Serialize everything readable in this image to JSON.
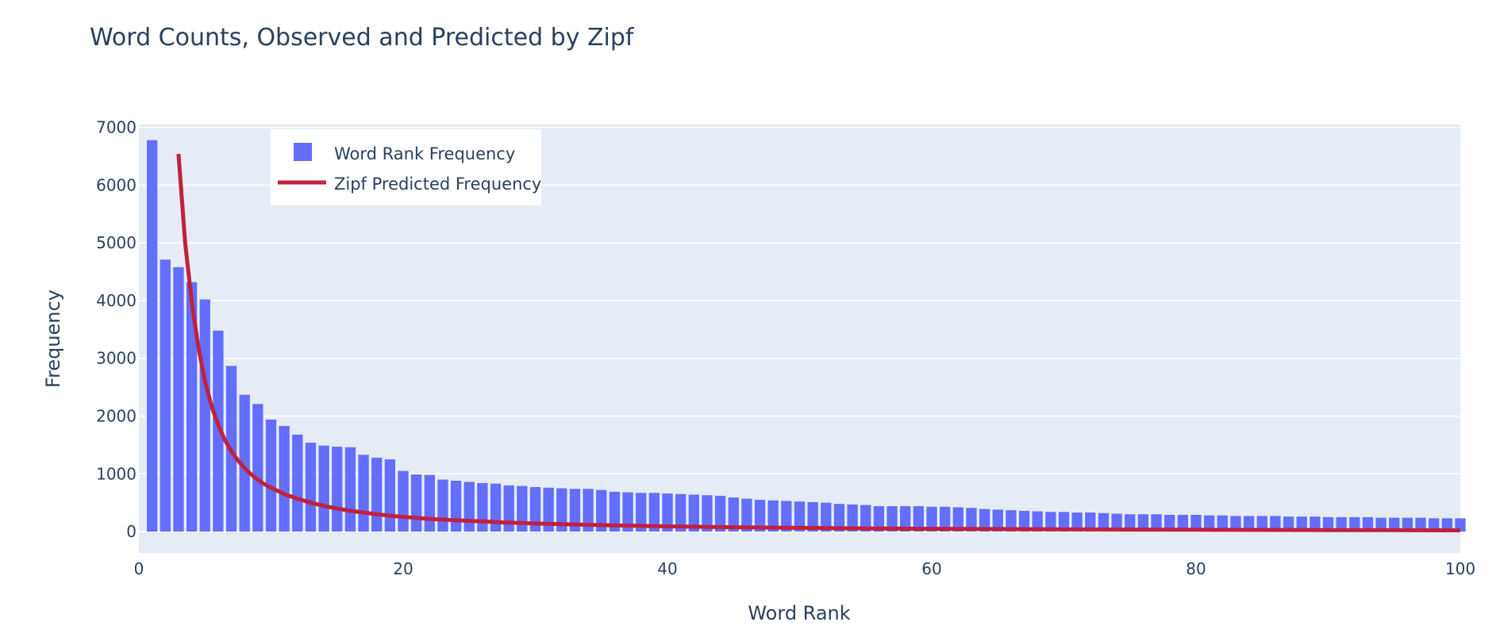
{
  "chart_data": {
    "type": "bar",
    "title": "Word Counts, Observed and Predicted by Zipf",
    "xlabel": "Word Rank",
    "ylabel": "Frequency",
    "xlim": [
      0,
      100
    ],
    "ylim": [
      -370,
      7050
    ],
    "x_ticks": [
      0,
      20,
      40,
      60,
      80,
      100
    ],
    "y_ticks": [
      0,
      1000,
      2000,
      3000,
      4000,
      5000,
      6000,
      7000
    ],
    "grid": true,
    "legend_position": "top-left",
    "colors": {
      "bar": "#636efa",
      "line": "#c0213d",
      "plot_bg": "#e5ecf6"
    },
    "series": [
      {
        "name": "Word Rank Frequency",
        "type": "bar",
        "x": [
          1,
          2,
          3,
          4,
          5,
          6,
          7,
          8,
          9,
          10,
          11,
          12,
          13,
          14,
          15,
          16,
          17,
          18,
          19,
          20,
          21,
          22,
          23,
          24,
          25,
          26,
          27,
          28,
          29,
          30,
          31,
          32,
          33,
          34,
          35,
          36,
          37,
          38,
          39,
          40,
          41,
          42,
          43,
          44,
          45,
          46,
          47,
          48,
          49,
          50,
          51,
          52,
          53,
          54,
          55,
          56,
          57,
          58,
          59,
          60,
          61,
          62,
          63,
          64,
          65,
          66,
          67,
          68,
          69,
          70,
          71,
          72,
          73,
          74,
          75,
          76,
          77,
          78,
          79,
          80,
          81,
          82,
          83,
          84,
          85,
          86,
          87,
          88,
          89,
          90,
          91,
          92,
          93,
          94,
          95,
          96,
          97,
          98,
          99,
          100
        ],
        "values": [
          6780,
          4710,
          4580,
          4320,
          4020,
          3480,
          2870,
          2370,
          2210,
          1940,
          1830,
          1680,
          1540,
          1490,
          1470,
          1460,
          1330,
          1280,
          1250,
          1050,
          990,
          980,
          900,
          880,
          860,
          840,
          830,
          800,
          790,
          770,
          760,
          750,
          740,
          740,
          720,
          690,
          680,
          670,
          670,
          660,
          650,
          640,
          630,
          620,
          590,
          570,
          550,
          540,
          530,
          520,
          510,
          500,
          480,
          470,
          460,
          440,
          440,
          440,
          440,
          430,
          430,
          420,
          410,
          390,
          380,
          370,
          360,
          350,
          340,
          340,
          330,
          330,
          320,
          310,
          300,
          300,
          300,
          290,
          290,
          290,
          280,
          280,
          270,
          270,
          270,
          270,
          260,
          260,
          260,
          250,
          250,
          250,
          250,
          240,
          240,
          240,
          240,
          230,
          230,
          230
        ]
      },
      {
        "name": "Zipf Predicted Frequency",
        "type": "line",
        "x": [
          3,
          3.5,
          4,
          4.5,
          5,
          5.5,
          6,
          6.5,
          7,
          7.5,
          8,
          8.5,
          9,
          9.5,
          10,
          11,
          12,
          13,
          14,
          15,
          16,
          17,
          18,
          19,
          20,
          22,
          24,
          26,
          28,
          30,
          32,
          35,
          38,
          40,
          45,
          50,
          55,
          60,
          65,
          70,
          75,
          80,
          85,
          90,
          95,
          100
        ],
        "values": [
          6540,
          5000,
          3980,
          3200,
          2600,
          2170,
          1850,
          1590,
          1390,
          1230,
          1100,
          990,
          900,
          820,
          760,
          650,
          570,
          500,
          445,
          400,
          360,
          330,
          300,
          275,
          255,
          220,
          195,
          175,
          155,
          140,
          128,
          112,
          98,
          90,
          75,
          64,
          55,
          48,
          43,
          38,
          34,
          31,
          28,
          26,
          24,
          22
        ]
      }
    ]
  }
}
